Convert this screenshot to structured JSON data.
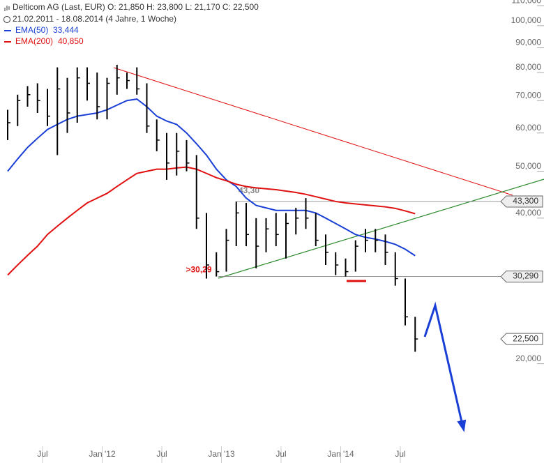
{
  "chart_data": {
    "type": "ohlc",
    "title": "Delticom AG (Last, EUR)  O: 21,850  H: 23,800  L: 21,170  C: 22,500",
    "subtitle": "21.02.2011 - 18.08.2014 (4 Jahre, 1 Woche)",
    "log_scale": true,
    "color": "#000000",
    "x": [
      "2011-03",
      "2011-04",
      "2011-05",
      "2011-06",
      "2011-07",
      "2011-08",
      "2011-09",
      "2011-10",
      "2011-11",
      "2011-12",
      "2012-01",
      "2012-02",
      "2012-03",
      "2012-04",
      "2012-05",
      "2012-06",
      "2012-07",
      "2012-08",
      "2012-09",
      "2012-10",
      "2012-11",
      "2012-12",
      "2013-01",
      "2013-02",
      "2013-03",
      "2013-04",
      "2013-05",
      "2013-06",
      "2013-07",
      "2013-08",
      "2013-09",
      "2013-10",
      "2013-11",
      "2013-12",
      "2014-01",
      "2014-02",
      "2014-03",
      "2014-04",
      "2014-05",
      "2014-06",
      "2014-07",
      "2014-08"
    ],
    "high": [
      67,
      72,
      75,
      76,
      74,
      82,
      78,
      82,
      82,
      80,
      78,
      83,
      80,
      82,
      76,
      64,
      60,
      60,
      58,
      54,
      41,
      34,
      38,
      43.3,
      43,
      40,
      40,
      41,
      41,
      42,
      44,
      41,
      37,
      34,
      33,
      36,
      38,
      38,
      37,
      34,
      30,
      25
    ],
    "low": [
      58,
      62,
      68,
      66,
      62,
      54,
      60,
      63,
      70,
      64,
      64,
      72,
      74,
      72,
      60,
      55,
      48,
      49,
      50,
      38,
      30,
      30.29,
      31,
      35,
      35,
      31.5,
      34,
      35,
      33,
      37,
      38,
      35,
      32,
      30.5,
      30.3,
      31,
      34,
      34,
      32,
      29,
      24,
      21.17
    ],
    "close": [
      63,
      70,
      72,
      70,
      65,
      74,
      66,
      78,
      76,
      68,
      76,
      78,
      77,
      74,
      62,
      58,
      52,
      55,
      52,
      40,
      32,
      31,
      36,
      41,
      37,
      35,
      38,
      37,
      39,
      40,
      40,
      36,
      34,
      32,
      31,
      35,
      36,
      36,
      34,
      30,
      25,
      22.5
    ],
    "series": [
      {
        "name": "EMA(50)",
        "color": "#1a3fd6",
        "last_label": "33,444",
        "values": [
          50,
          53,
          56,
          58.5,
          61,
          62.5,
          64,
          65,
          65.5,
          66,
          67,
          68.5,
          70,
          70.5,
          68,
          65,
          63.5,
          62.5,
          60,
          57,
          54,
          50.5,
          48,
          46.5,
          44,
          42.5,
          42,
          41.5,
          41.5,
          41.5,
          41.5,
          41,
          40,
          39,
          38,
          37,
          36.5,
          36.2,
          35.8,
          35.3,
          34.5,
          33.444
        ]
      },
      {
        "name": "EMA(200)",
        "color": "#e01010",
        "last_label": "40,850",
        "values": [
          30.5,
          32,
          33.5,
          35,
          37,
          38.5,
          40,
          41.5,
          43,
          44,
          45,
          46.5,
          48,
          49.5,
          50,
          50.5,
          50.5,
          50.8,
          51,
          50.5,
          49.5,
          48.5,
          47.8,
          47,
          46.5,
          46.2,
          46,
          45.8,
          45.5,
          45.2,
          44.8,
          44.3,
          43.8,
          43.3,
          43,
          42.8,
          42.6,
          42.4,
          42.2,
          41.9,
          41.4,
          40.85
        ]
      }
    ],
    "ylim": [
      13.5,
      113
    ],
    "yticks": [
      {
        "value": 20,
        "label": "20,000"
      },
      {
        "value": 40,
        "label": "40,000"
      },
      {
        "value": 50,
        "label": "50,000"
      },
      {
        "value": 60,
        "label": "60,000"
      },
      {
        "value": 70,
        "label": "70,000"
      },
      {
        "value": 80,
        "label": "80,000"
      },
      {
        "value": 90,
        "label": "90,000"
      },
      {
        "value": 100,
        "label": "100,000"
      },
      {
        "value": 110,
        "label": "110,000"
      }
    ],
    "xticks": [
      {
        "value": "2011-07",
        "label": "Jul"
      },
      {
        "value": "2012-01",
        "label": "Jan '12"
      },
      {
        "value": "2012-07",
        "label": "Jul"
      },
      {
        "value": "2013-01",
        "label": "Jan '13"
      },
      {
        "value": "2013-07",
        "label": "Jul"
      },
      {
        "value": "2014-01",
        "label": "Jan '14"
      },
      {
        "value": "2014-07",
        "label": "Jul"
      }
    ],
    "levels": [
      {
        "value": 43.3,
        "label": "43,300"
      },
      {
        "value": 30.29,
        "label": "30,290"
      },
      {
        "value": 22.5,
        "label": "22,500"
      }
    ],
    "annotations": [
      {
        "value": 43.3,
        "label": "43,30"
      },
      {
        "value": 30.29,
        "label": ">30,29"
      }
    ]
  }
}
